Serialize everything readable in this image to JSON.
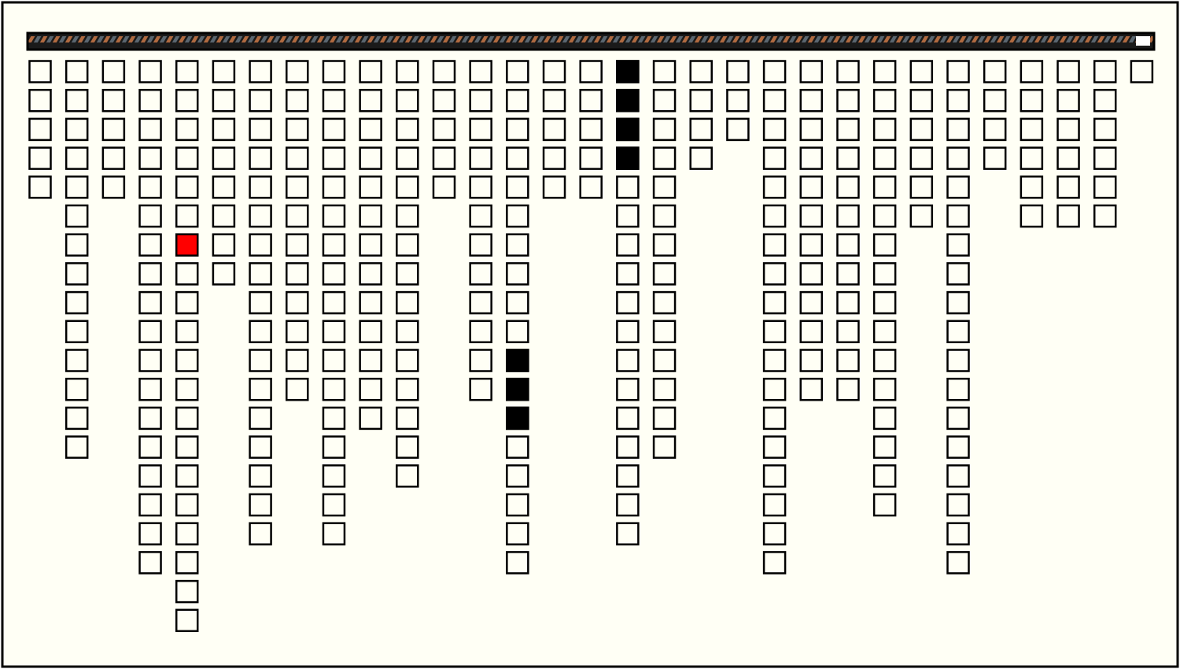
{
  "board": {
    "columns": [
      5,
      14,
      5,
      18,
      20,
      8,
      17,
      12,
      17,
      13,
      15,
      5,
      12,
      18,
      5,
      5,
      17,
      14,
      4,
      3,
      18,
      12,
      12,
      16,
      6,
      18,
      4,
      6,
      6,
      6,
      1
    ],
    "highlights": [
      {
        "column": 4,
        "row": 6,
        "color": "#ff0000"
      },
      {
        "column": 13,
        "row": 10,
        "color": "#000000"
      },
      {
        "column": 13,
        "row": 11,
        "color": "#000000"
      },
      {
        "column": 13,
        "row": 12,
        "color": "#000000"
      },
      {
        "column": 16,
        "row": 0,
        "color": "#000000"
      },
      {
        "column": 16,
        "row": 1,
        "color": "#000000"
      },
      {
        "column": 16,
        "row": 2,
        "color": "#000000"
      },
      {
        "column": 16,
        "row": 3,
        "color": "#000000"
      }
    ]
  }
}
